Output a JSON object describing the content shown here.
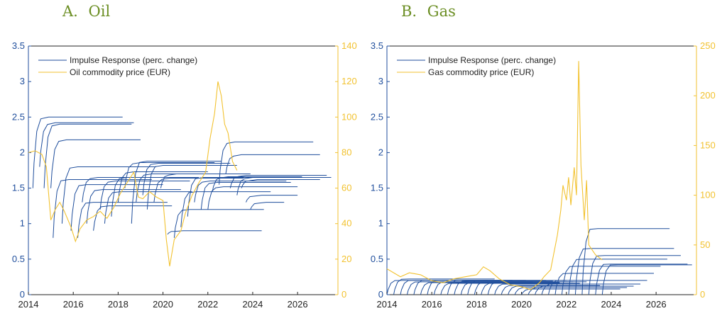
{
  "panels": {
    "oil": {
      "title_letter": "A.",
      "title_name": "Oil"
    },
    "gas": {
      "title_letter": "B.",
      "title_name": "Gas"
    }
  },
  "chart_data": [
    {
      "id": "oil",
      "type": "line",
      "title": "A. Oil",
      "xlim": [
        2014,
        2027.8
      ],
      "xticks": [
        2014,
        2016,
        2018,
        2020,
        2022,
        2024,
        2026
      ],
      "ylim_left": [
        0,
        3.5
      ],
      "yticks_left": [
        "0",
        "0.5",
        "1",
        "1.5",
        "2",
        "2.5",
        "3",
        "3.5"
      ],
      "ylim_right": [
        0,
        140
      ],
      "yticks_right": [
        "0",
        "20",
        "40",
        "60",
        "80",
        "100",
        "120",
        "140"
      ],
      "legend": [
        "Impulse Response (perc. change)",
        "Oil commodity price (EUR)"
      ],
      "colors": {
        "impulse": "#1f4e9c",
        "price": "#f2c230",
        "axis_left": "#1f4e9c",
        "axis_right": "#f2c230"
      },
      "impulse_series": [
        {
          "start": 2014.2,
          "dip": 1.5,
          "plateau": 2.5,
          "end": 2018.2
        },
        {
          "start": 2014.5,
          "dip": 1.8,
          "plateau": 2.42,
          "end": 2018.7
        },
        {
          "start": 2014.7,
          "dip": 1.5,
          "plateau": 2.4,
          "end": 2018.6
        },
        {
          "start": 2015.0,
          "dip": 1.5,
          "plateau": 2.18,
          "end": 2019.0
        },
        {
          "start": 2015.1,
          "dip": 0.8,
          "plateau": 1.62,
          "end": 2019.5
        },
        {
          "start": 2015.5,
          "dip": 1.0,
          "plateau": 1.8,
          "end": 2019.7
        },
        {
          "start": 2015.9,
          "dip": 0.9,
          "plateau": 1.55,
          "end": 2020.0
        },
        {
          "start": 2016.2,
          "dip": 0.8,
          "plateau": 1.3,
          "end": 2020.2
        },
        {
          "start": 2016.4,
          "dip": 1.3,
          "plateau": 1.65,
          "end": 2020.5
        },
        {
          "start": 2016.6,
          "dip": 1.0,
          "plateau": 1.48,
          "end": 2020.8
        },
        {
          "start": 2016.9,
          "dip": 0.9,
          "plateau": 1.25,
          "end": 2020.4
        },
        {
          "start": 2017.2,
          "dip": 1.2,
          "plateau": 1.6,
          "end": 2021.2
        },
        {
          "start": 2017.4,
          "dip": 1.0,
          "plateau": 1.45,
          "end": 2021.3
        },
        {
          "start": 2017.7,
          "dip": 1.1,
          "plateau": 1.65,
          "end": 2021.6
        },
        {
          "start": 2018.0,
          "dip": 1.3,
          "plateau": 1.73,
          "end": 2022.0
        },
        {
          "start": 2018.3,
          "dip": 1.5,
          "plateau": 1.86,
          "end": 2022.3
        },
        {
          "start": 2018.6,
          "dip": 1.0,
          "plateau": 1.88,
          "end": 2022.6
        },
        {
          "start": 2018.8,
          "dip": 1.3,
          "plateau": 1.7,
          "end": 2022.8
        },
        {
          "start": 2019.1,
          "dip": 1.4,
          "plateau": 1.85,
          "end": 2023.0
        },
        {
          "start": 2019.3,
          "dip": 1.2,
          "plateau": 1.82,
          "end": 2023.3
        },
        {
          "start": 2019.6,
          "dip": 1.3,
          "plateau": 1.64,
          "end": 2023.6
        },
        {
          "start": 2019.9,
          "dip": 1.5,
          "plateau": 1.7,
          "end": 2023.9
        },
        {
          "start": 2020.2,
          "dip": 0.85,
          "plateau": 0.9,
          "end": 2024.4
        },
        {
          "start": 2020.5,
          "dip": 0.8,
          "plateau": 1.2,
          "end": 2024.5
        },
        {
          "start": 2020.8,
          "dip": 0.95,
          "plateau": 1.45,
          "end": 2024.8
        },
        {
          "start": 2021.1,
          "dip": 1.1,
          "plateau": 1.65,
          "end": 2025.1
        },
        {
          "start": 2021.4,
          "dip": 1.3,
          "plateau": 1.6,
          "end": 2025.5
        },
        {
          "start": 2021.7,
          "dip": 1.2,
          "plateau": 1.58,
          "end": 2025.7
        },
        {
          "start": 2022.0,
          "dip": 1.2,
          "plateau": 1.52,
          "end": 2026.0
        },
        {
          "start": 2022.2,
          "dip": 1.45,
          "plateau": 1.66,
          "end": 2026.2
        },
        {
          "start": 2022.5,
          "dip": 1.55,
          "plateau": 2.15,
          "end": 2026.7
        },
        {
          "start": 2022.8,
          "dip": 1.7,
          "plateau": 1.97,
          "end": 2027.0
        },
        {
          "start": 2023.0,
          "dip": 1.5,
          "plateau": 1.68,
          "end": 2027.3
        },
        {
          "start": 2023.3,
          "dip": 1.4,
          "plateau": 1.65,
          "end": 2027.5
        },
        {
          "start": 2023.5,
          "dip": 1.5,
          "plateau": 1.62,
          "end": 2027.0
        },
        {
          "start": 2023.7,
          "dip": 1.3,
          "plateau": 1.4,
          "end": 2026.0
        },
        {
          "start": 2023.9,
          "dip": 1.2,
          "plateau": 1.3,
          "end": 2025.4
        }
      ],
      "price_series": {
        "x": [
          2014.0,
          2014.3,
          2014.6,
          2014.8,
          2015.0,
          2015.2,
          2015.4,
          2015.6,
          2015.9,
          2016.1,
          2016.3,
          2016.6,
          2016.9,
          2017.2,
          2017.5,
          2017.8,
          2018.1,
          2018.4,
          2018.7,
          2018.9,
          2019.1,
          2019.4,
          2019.7,
          2020.0,
          2020.15,
          2020.3,
          2020.5,
          2020.8,
          2021.0,
          2021.3,
          2021.6,
          2021.9,
          2022.1,
          2022.3,
          2022.45,
          2022.6,
          2022.75,
          2022.9,
          2023.1,
          2023.3
        ],
        "y": [
          80,
          81,
          79,
          72,
          42,
          48,
          52,
          47,
          38,
          30,
          37,
          42,
          44,
          47,
          43,
          49,
          57,
          63,
          69,
          55,
          54,
          58,
          55,
          53,
          31,
          16,
          31,
          36,
          46,
          56,
          63,
          69,
          88,
          102,
          120,
          112,
          96,
          91,
          75,
          70
        ]
      }
    },
    {
      "id": "gas",
      "type": "line",
      "title": "B. Gas",
      "xlim": [
        2014,
        2027.8
      ],
      "xticks": [
        2014,
        2016,
        2018,
        2020,
        2022,
        2024,
        2026
      ],
      "ylim_left": [
        0,
        3.5
      ],
      "yticks_left": [
        "0",
        "0.5",
        "1",
        "1.5",
        "2",
        "2.5",
        "3",
        "3.5"
      ],
      "ylim_right": [
        0,
        250
      ],
      "yticks_right": [
        "0",
        "50",
        "100",
        "150",
        "200",
        "250"
      ],
      "legend": [
        "Impulse Response (perc. change)",
        "Gas commodity price (EUR)"
      ],
      "colors": {
        "impulse": "#1f4e9c",
        "price": "#f2c230",
        "axis_left": "#1f4e9c",
        "axis_right": "#f2c230"
      },
      "impulse_series": [
        {
          "start": 2014.0,
          "dip": 0.0,
          "plateau": 0.2,
          "end": 2018.5
        },
        {
          "start": 2014.3,
          "dip": 0.0,
          "plateau": 0.22,
          "end": 2018.8
        },
        {
          "start": 2014.6,
          "dip": 0.0,
          "plateau": 0.2,
          "end": 2019.0
        },
        {
          "start": 2014.9,
          "dip": 0.0,
          "plateau": 0.18,
          "end": 2019.3
        },
        {
          "start": 2015.2,
          "dip": 0.0,
          "plateau": 0.2,
          "end": 2019.6
        },
        {
          "start": 2015.5,
          "dip": 0.0,
          "plateau": 0.17,
          "end": 2019.9
        },
        {
          "start": 2015.8,
          "dip": 0.0,
          "plateau": 0.2,
          "end": 2020.2
        },
        {
          "start": 2016.1,
          "dip": 0.0,
          "plateau": 0.18,
          "end": 2020.5
        },
        {
          "start": 2016.4,
          "dip": 0.0,
          "plateau": 0.16,
          "end": 2020.8
        },
        {
          "start": 2016.7,
          "dip": 0.0,
          "plateau": 0.2,
          "end": 2021.1
        },
        {
          "start": 2017.0,
          "dip": 0.0,
          "plateau": 0.19,
          "end": 2021.4
        },
        {
          "start": 2017.3,
          "dip": 0.0,
          "plateau": 0.17,
          "end": 2021.7
        },
        {
          "start": 2017.6,
          "dip": 0.0,
          "plateau": 0.2,
          "end": 2022.0
        },
        {
          "start": 2017.9,
          "dip": 0.0,
          "plateau": 0.18,
          "end": 2022.3
        },
        {
          "start": 2018.2,
          "dip": 0.0,
          "plateau": 0.16,
          "end": 2022.6
        },
        {
          "start": 2018.5,
          "dip": 0.0,
          "plateau": 0.18,
          "end": 2022.9
        },
        {
          "start": 2018.8,
          "dip": 0.0,
          "plateau": 0.15,
          "end": 2023.2
        },
        {
          "start": 2019.1,
          "dip": 0.0,
          "plateau": 0.13,
          "end": 2023.5
        },
        {
          "start": 2019.4,
          "dip": 0.0,
          "plateau": 0.12,
          "end": 2023.8
        },
        {
          "start": 2019.7,
          "dip": 0.0,
          "plateau": 0.1,
          "end": 2024.1
        },
        {
          "start": 2020.0,
          "dip": 0.0,
          "plateau": 0.08,
          "end": 2024.4
        },
        {
          "start": 2020.3,
          "dip": 0.0,
          "plateau": 0.1,
          "end": 2024.7
        },
        {
          "start": 2020.6,
          "dip": 0.0,
          "plateau": 0.12,
          "end": 2025.0
        },
        {
          "start": 2020.9,
          "dip": 0.0,
          "plateau": 0.15,
          "end": 2025.3
        },
        {
          "start": 2021.2,
          "dip": 0.0,
          "plateau": 0.2,
          "end": 2025.6
        },
        {
          "start": 2021.5,
          "dip": 0.0,
          "plateau": 0.3,
          "end": 2025.9
        },
        {
          "start": 2021.8,
          "dip": 0.0,
          "plateau": 0.4,
          "end": 2026.2
        },
        {
          "start": 2022.1,
          "dip": 0.0,
          "plateau": 0.5,
          "end": 2026.5
        },
        {
          "start": 2022.4,
          "dip": 0.0,
          "plateau": 0.65,
          "end": 2026.8
        },
        {
          "start": 2022.7,
          "dip": 0.0,
          "plateau": 0.93,
          "end": 2026.6
        },
        {
          "start": 2023.0,
          "dip": 0.0,
          "plateau": 0.55,
          "end": 2027.1
        },
        {
          "start": 2023.3,
          "dip": 0.0,
          "plateau": 0.43,
          "end": 2027.4
        },
        {
          "start": 2023.6,
          "dip": 0.0,
          "plateau": 0.42,
          "end": 2027.6
        }
      ],
      "price_series": {
        "x": [
          2014.0,
          2014.3,
          2014.6,
          2015.0,
          2015.5,
          2016.0,
          2016.5,
          2017.0,
          2017.5,
          2018.0,
          2018.3,
          2018.6,
          2019.0,
          2019.5,
          2020.0,
          2020.4,
          2020.8,
          2021.0,
          2021.3,
          2021.6,
          2021.75,
          2021.85,
          2022.0,
          2022.1,
          2022.2,
          2022.35,
          2022.45,
          2022.55,
          2022.65,
          2022.8,
          2022.9,
          2023.0,
          2023.3,
          2023.6
        ],
        "y": [
          26,
          22,
          18,
          22,
          20,
          14,
          12,
          16,
          18,
          20,
          28,
          24,
          16,
          10,
          8,
          5,
          12,
          18,
          25,
          60,
          85,
          110,
          95,
          118,
          90,
          128,
          100,
          235,
          130,
          75,
          115,
          50,
          40,
          35
        ]
      }
    }
  ]
}
